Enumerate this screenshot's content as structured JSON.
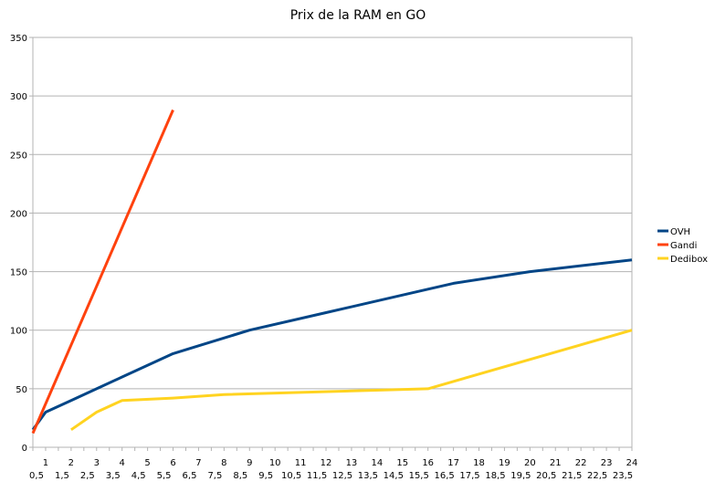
{
  "chart_data": {
    "type": "line",
    "title": "Prix de la RAM en GO",
    "xlabel": "",
    "ylabel": "",
    "x_categories": [
      "0,5",
      "1",
      "1,5",
      "2",
      "2,5",
      "3",
      "3,5",
      "4",
      "4,5",
      "5",
      "5,5",
      "6",
      "6,5",
      "7",
      "7,5",
      "8",
      "8,5",
      "9",
      "9,5",
      "10",
      "10,5",
      "11",
      "11,5",
      "12",
      "12,5",
      "13",
      "13,5",
      "14",
      "14,5",
      "15",
      "15,5",
      "16",
      "16,5",
      "17",
      "17,5",
      "18",
      "18,5",
      "19",
      "19,5",
      "20",
      "20,5",
      "21",
      "21,5",
      "22",
      "22,5",
      "23",
      "23,5",
      "24"
    ],
    "ylim": [
      0,
      350
    ],
    "y_ticks": [
      0,
      50,
      100,
      150,
      200,
      250,
      300,
      350
    ],
    "grid": "horizontal",
    "legend_position": "right",
    "series": [
      {
        "name": "OVH",
        "color": "#004586",
        "points": [
          [
            0.5,
            15
          ],
          [
            1,
            30
          ],
          [
            2,
            40
          ],
          [
            3,
            50
          ],
          [
            4,
            60
          ],
          [
            6,
            80
          ],
          [
            9,
            100
          ],
          [
            12,
            115
          ],
          [
            16,
            135
          ],
          [
            17,
            140
          ],
          [
            20,
            150
          ],
          [
            24,
            160
          ]
        ]
      },
      {
        "name": "Gandi",
        "color": "#ff420e",
        "points": [
          [
            0.5,
            12
          ],
          [
            6,
            288
          ]
        ]
      },
      {
        "name": "Dedibox",
        "color": "#ffd320",
        "points": [
          [
            2,
            15
          ],
          [
            3,
            30
          ],
          [
            4,
            40
          ],
          [
            6,
            42
          ],
          [
            8,
            45
          ],
          [
            16,
            50
          ],
          [
            24,
            100
          ]
        ]
      }
    ]
  }
}
